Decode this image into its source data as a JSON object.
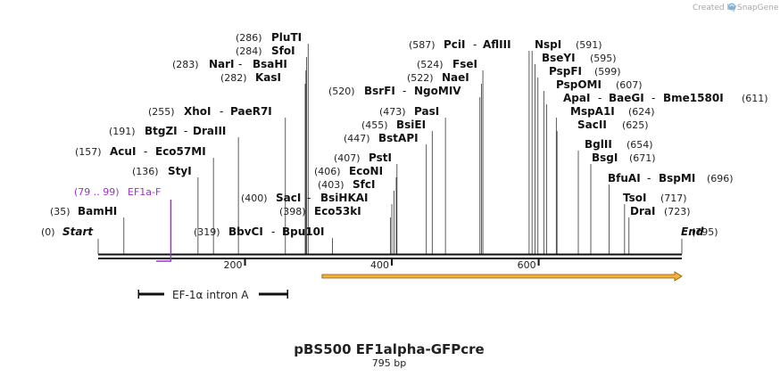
{
  "credit": {
    "text": "Created by",
    "brand": "SnapGene"
  },
  "title": "pBS500 EF1alpha-GFPcre",
  "length_label": "795 bp",
  "sequence_length": 795,
  "start_label": {
    "pos": "(0)",
    "name": "Start"
  },
  "end_label": {
    "name": "End",
    "pos": "(795)"
  },
  "ticks": [
    {
      "value": 200,
      "label": "200"
    },
    {
      "value": 400,
      "label": "400"
    },
    {
      "value": 600,
      "label": "600"
    }
  ],
  "primer": {
    "range": "(79 .. 99)",
    "name": "EF1a-F",
    "start": 79,
    "end": 99,
    "color": "#9b30d0"
  },
  "feature": {
    "name": "EF-1α intron A",
    "start": 55,
    "end": 258
  },
  "orf": {
    "start": 305,
    "end": 795,
    "color": "#f5b041"
  },
  "sites": [
    {
      "pos": "(286)",
      "name": "PluTI",
      "site": 286
    },
    {
      "pos": "(284)",
      "name": "SfoI",
      "site": 284
    },
    {
      "pos": "(283)",
      "name": "NarI",
      "alt": "BsaHI",
      "site": 283
    },
    {
      "pos": "(282)",
      "name": "KasI",
      "site": 282
    },
    {
      "pos": "(255)",
      "name": "XhoI",
      "alt": "PaeR7I",
      "site": 255
    },
    {
      "pos": "(191)",
      "name": "BtgZI",
      "alt": "DraIII",
      "site": 191
    },
    {
      "pos": "(157)",
      "name": "AcuI",
      "alt": "Eco57MI",
      "site": 157
    },
    {
      "pos": "(136)",
      "name": "StyI",
      "site": 136
    },
    {
      "pos": "(35)",
      "name": "BamHI",
      "site": 35
    },
    {
      "pos": "(400)",
      "name": "SacI",
      "alt": "BsiHKAI",
      "site": 400
    },
    {
      "pos": "(398)",
      "name": "Eco53kI",
      "site": 398
    },
    {
      "pos": "(319)",
      "name": "BbvCI",
      "alt": "Bpu10I",
      "site": 319
    },
    {
      "pos": "(587)",
      "name": "PciI",
      "alt": "AflIII",
      "site": 587
    },
    {
      "pos": "(524)",
      "name": "FseI",
      "site": 524
    },
    {
      "pos": "(522)",
      "name": "NaeI",
      "site": 522
    },
    {
      "pos": "(520)",
      "name": "BsrFI",
      "alt": "NgoMIV",
      "site": 520
    },
    {
      "pos": "(473)",
      "name": "PasI",
      "site": 473
    },
    {
      "pos": "(455)",
      "name": "BsiEI",
      "site": 455
    },
    {
      "pos": "(447)",
      "name": "BstAPI",
      "site": 447
    },
    {
      "pos": "(407)",
      "name": "PstI",
      "site": 407
    },
    {
      "pos": "(406)",
      "name": "EcoNI",
      "site": 406
    },
    {
      "pos": "(403)",
      "name": "SfcI",
      "site": 403
    },
    {
      "pos": "(591)",
      "name": "NspI",
      "site": 591
    },
    {
      "pos": "(595)",
      "name": "BseYI",
      "site": 595
    },
    {
      "pos": "(599)",
      "name": "PspFI",
      "site": 599
    },
    {
      "pos": "(607)",
      "name": "PspOMI",
      "site": 607
    },
    {
      "pos": "(611)",
      "name": "ApaI",
      "alt": "BaeGI",
      "alt2": "Bme1580I",
      "site": 611
    },
    {
      "pos": "(624)",
      "name": "MspA1I",
      "site": 624
    },
    {
      "pos": "(625)",
      "name": "SacII",
      "site": 625
    },
    {
      "pos": "(654)",
      "name": "BglII",
      "site": 654
    },
    {
      "pos": "(671)",
      "name": "BsgI",
      "site": 671
    },
    {
      "pos": "(696)",
      "name": "BfuAI",
      "alt": "BspMI",
      "site": 696
    },
    {
      "pos": "(717)",
      "name": "TsoI",
      "site": 717
    },
    {
      "pos": "(723)",
      "name": "DraI",
      "site": 723
    }
  ]
}
